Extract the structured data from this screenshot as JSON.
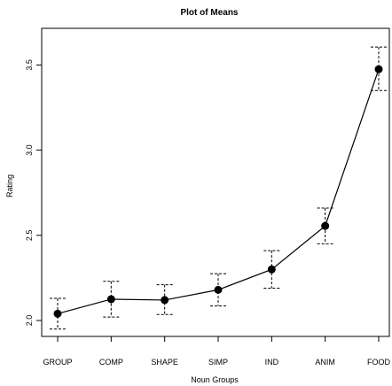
{
  "chart_data": {
    "type": "line",
    "title": "Plot of Means",
    "xlabel": "Noun Groups",
    "ylabel": "Rating",
    "categories": [
      "GROUP",
      "COMP",
      "SHAPE",
      "SIMP",
      "IND",
      "ANIM",
      "FOOD"
    ],
    "series": [
      {
        "values": [
          2.04,
          2.125,
          2.12,
          2.18,
          2.3,
          2.555,
          3.475
        ],
        "error_lower": [
          1.95,
          2.02,
          2.035,
          2.085,
          2.19,
          2.45,
          3.35
        ],
        "error_upper": [
          2.13,
          2.23,
          2.21,
          2.275,
          2.41,
          2.66,
          3.605
        ]
      }
    ],
    "yticks": [
      2.0,
      2.5,
      3.0,
      3.5
    ],
    "ytick_labels": [
      "2.0",
      "2.5",
      "3.0",
      "3.5"
    ],
    "ylim": [
      1.9585,
      3.6475
    ],
    "grid": false,
    "legend": "none",
    "colors": {
      "line": "#000000",
      "marker": "#000000",
      "error_bar": "#000000"
    }
  }
}
